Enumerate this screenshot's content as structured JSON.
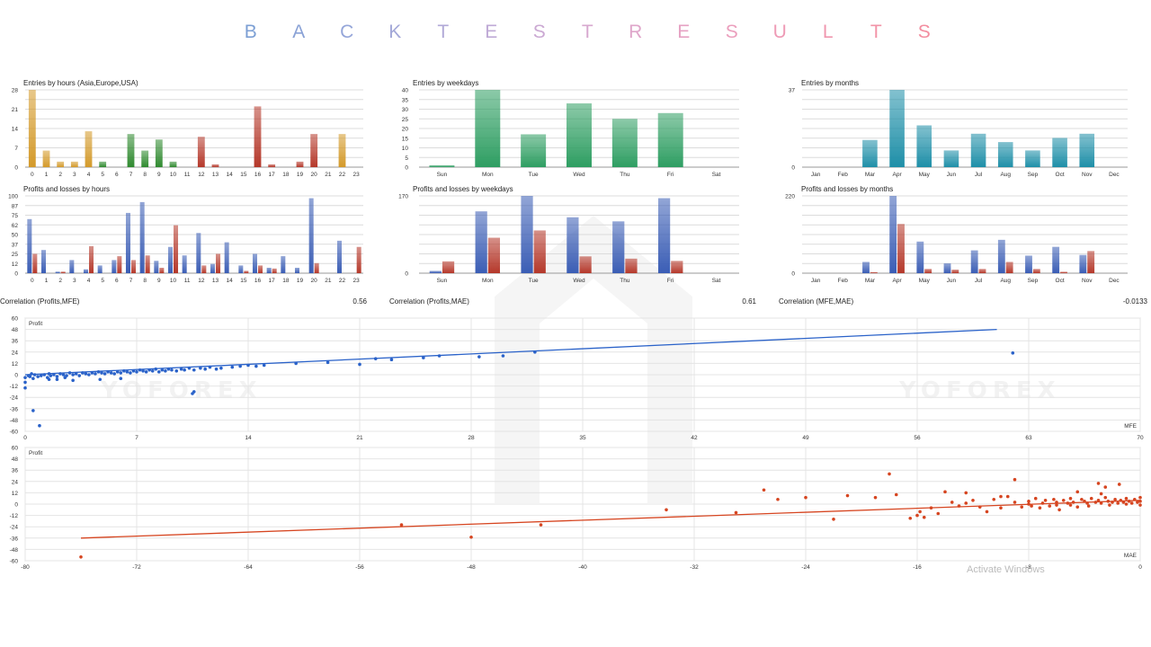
{
  "page_title_letters": [
    "B",
    "A",
    "C",
    "K",
    "T",
    "E",
    "S",
    "T",
    "R",
    "E",
    "S",
    "U",
    "L",
    "T",
    "S"
  ],
  "title_colors": [
    "#7c9fd4",
    "#8aa2d6",
    "#95a6d9",
    "#a3a8d8",
    "#b1a9d7",
    "#bfaad6",
    "#cba9d3",
    "#d7a8cf",
    "#dfa6ca",
    "#e6a2c3",
    "#eb9fbd",
    "#ee9bb6",
    "#f097af",
    "#f293a7",
    "#f38ea0"
  ],
  "watermark": "YOFOREX",
  "activate_text": "Activate Windows",
  "colors": {
    "hours_gold": "#d49a2a",
    "hours_green": "#2f8a2f",
    "hours_red": "#b5382a",
    "weekday_green": "#2e9e62",
    "month_teal": "#1e8fa8",
    "profit_blue": "#3a5db5",
    "loss_red": "#b5382a",
    "mfe_blue": "#2a62c9",
    "mae_red": "#d64520"
  },
  "correlations": [
    {
      "label": "Correlation (Profits,MFE)",
      "value": "0.56"
    },
    {
      "label": "Correlation (Profits,MAE)",
      "value": "0.61"
    },
    {
      "label": "Correlation (MFE,MAE)",
      "value": "-0.0133"
    }
  ],
  "chart_data": [
    {
      "id": "entries-hours",
      "type": "bar",
      "title": "Entries by hours (Asia,Europe,USA)",
      "categories": [
        "0",
        "1",
        "2",
        "3",
        "4",
        "5",
        "6",
        "7",
        "8",
        "9",
        "10",
        "11",
        "12",
        "13",
        "14",
        "15",
        "16",
        "17",
        "18",
        "19",
        "20",
        "21",
        "22",
        "23"
      ],
      "values": [
        28,
        6,
        2,
        2,
        13,
        2,
        0,
        12,
        6,
        10,
        2,
        0,
        11,
        1,
        0,
        0,
        22,
        1,
        0,
        2,
        12,
        0,
        12,
        0
      ],
      "sessions": [
        "asia",
        "asia",
        "asia",
        "asia",
        "asia",
        "europe",
        "europe",
        "europe",
        "europe",
        "europe",
        "europe",
        "usa",
        "usa",
        "usa",
        "usa",
        "usa",
        "usa",
        "usa",
        "usa",
        "usa",
        "usa",
        "asia",
        "asia",
        "asia"
      ],
      "yticks": [
        "0",
        "7",
        "14",
        "21",
        "28"
      ],
      "ylim": [
        0,
        28
      ]
    },
    {
      "id": "entries-weekdays",
      "type": "bar",
      "title": "Entries by weekdays",
      "categories": [
        "Sun",
        "Mon",
        "Tue",
        "Wed",
        "Thu",
        "Fri",
        "Sat"
      ],
      "values": [
        1,
        40,
        17,
        33,
        25,
        28,
        0
      ],
      "yticks": [
        "0",
        "5",
        "10",
        "15",
        "20",
        "25",
        "30",
        "35",
        "40"
      ],
      "ylim": [
        0,
        40
      ]
    },
    {
      "id": "entries-months",
      "type": "bar",
      "title": "Entries by months",
      "categories": [
        "Jan",
        "Feb",
        "Mar",
        "Apr",
        "May",
        "Jun",
        "Jul",
        "Aug",
        "Sep",
        "Oct",
        "Nov",
        "Dec"
      ],
      "values": [
        0,
        0,
        13,
        37,
        20,
        8,
        16,
        12,
        8,
        14,
        16,
        0
      ],
      "yticks": [
        "0",
        "37"
      ],
      "ylim": [
        0,
        37
      ]
    },
    {
      "id": "pl-hours",
      "type": "bar",
      "title": "Profits and losses by hours",
      "categories": [
        "0",
        "1",
        "2",
        "3",
        "4",
        "5",
        "6",
        "7",
        "8",
        "9",
        "10",
        "11",
        "12",
        "13",
        "14",
        "15",
        "16",
        "17",
        "18",
        "19",
        "20",
        "21",
        "22",
        "23"
      ],
      "series": [
        {
          "name": "profits",
          "values": [
            70,
            30,
            2,
            17,
            5,
            10,
            17,
            78,
            92,
            16,
            34,
            23,
            52,
            12,
            40,
            10,
            25,
            7,
            22,
            7,
            97,
            0,
            42,
            0
          ]
        },
        {
          "name": "losses",
          "values": [
            25,
            0,
            2,
            0,
            35,
            0,
            22,
            17,
            23,
            7,
            62,
            0,
            10,
            25,
            0,
            3,
            10,
            6,
            0,
            0,
            13,
            0,
            0,
            34
          ]
        }
      ],
      "yticks": [
        "0",
        "12",
        "25",
        "37",
        "50",
        "62",
        "75",
        "87",
        "100"
      ],
      "ylim": [
        0,
        100
      ]
    },
    {
      "id": "pl-weekdays",
      "type": "bar",
      "title": "Profits and losses by weekdays",
      "categories": [
        "Sun",
        "Mon",
        "Tue",
        "Wed",
        "Thu",
        "Fri",
        "Sat"
      ],
      "series": [
        {
          "name": "profits",
          "values": [
            5,
            136,
            170,
            123,
            114,
            165,
            0
          ]
        },
        {
          "name": "losses",
          "values": [
            26,
            78,
            94,
            37,
            32,
            27,
            0
          ]
        }
      ],
      "yticks": [
        "0",
        "170"
      ],
      "ylim": [
        0,
        170
      ]
    },
    {
      "id": "pl-months",
      "type": "bar",
      "title": "Profits and losses by months",
      "categories": [
        "Jan",
        "Feb",
        "Mar",
        "Apr",
        "May",
        "Jun",
        "Jul",
        "Aug",
        "Sep",
        "Oct",
        "Nov",
        "Dec"
      ],
      "series": [
        {
          "name": "profits",
          "values": [
            0,
            0,
            32,
            220,
            90,
            28,
            65,
            95,
            50,
            75,
            52,
            0
          ]
        },
        {
          "name": "losses",
          "values": [
            0,
            0,
            3,
            140,
            12,
            10,
            12,
            32,
            12,
            4,
            63,
            0
          ]
        }
      ],
      "yticks": [
        "0",
        "220"
      ],
      "ylim": [
        0,
        220
      ]
    },
    {
      "id": "scatter-mfe",
      "type": "scatter",
      "ylabel": "Profit",
      "xlabel": "MFE",
      "xlim": [
        0,
        70
      ],
      "ylim": [
        -60,
        60
      ],
      "xticks": [
        0,
        7,
        14,
        21,
        28,
        35,
        42,
        49,
        56,
        63,
        70
      ],
      "yticks": [
        60,
        48,
        36,
        24,
        12,
        0,
        -12,
        -24,
        -36,
        -48,
        -60
      ],
      "trend": [
        [
          0,
          0
        ],
        [
          61,
          48
        ]
      ],
      "points": [
        [
          0,
          -3
        ],
        [
          0,
          -8
        ],
        [
          0,
          -14
        ],
        [
          0.2,
          -1
        ],
        [
          0.3,
          -2
        ],
        [
          0.4,
          1
        ],
        [
          0.5,
          -4
        ],
        [
          0.6,
          0
        ],
        [
          0.8,
          -2
        ],
        [
          1,
          -1
        ],
        [
          1.2,
          0
        ],
        [
          1.4,
          -3
        ],
        [
          1.5,
          1
        ],
        [
          1.6,
          -1
        ],
        [
          1.8,
          0
        ],
        [
          2,
          -2
        ],
        [
          2.2,
          1
        ],
        [
          2.4,
          0
        ],
        [
          2.6,
          -1
        ],
        [
          2.8,
          2
        ],
        [
          3,
          0
        ],
        [
          3.2,
          1
        ],
        [
          3.4,
          -1
        ],
        [
          3.6,
          2
        ],
        [
          3.8,
          1
        ],
        [
          4,
          0
        ],
        [
          4.2,
          2
        ],
        [
          4.4,
          1
        ],
        [
          4.6,
          3
        ],
        [
          4.8,
          2
        ],
        [
          5,
          1
        ],
        [
          5.2,
          3
        ],
        [
          5.4,
          2
        ],
        [
          5.6,
          1
        ],
        [
          5.8,
          3
        ],
        [
          6,
          2
        ],
        [
          6.2,
          4
        ],
        [
          6.4,
          3
        ],
        [
          6.6,
          2
        ],
        [
          6.8,
          4
        ],
        [
          7,
          3
        ],
        [
          7.2,
          5
        ],
        [
          7.4,
          4
        ],
        [
          7.6,
          3
        ],
        [
          7.8,
          5
        ],
        [
          8,
          4
        ],
        [
          8.2,
          6
        ],
        [
          8.4,
          3
        ],
        [
          8.6,
          5
        ],
        [
          8.8,
          4
        ],
        [
          9,
          6
        ],
        [
          9.2,
          5
        ],
        [
          9.5,
          4
        ],
        [
          9.8,
          6
        ],
        [
          10,
          5
        ],
        [
          10.3,
          7
        ],
        [
          10.6,
          5
        ],
        [
          11,
          7
        ],
        [
          11.3,
          6
        ],
        [
          11.6,
          8
        ],
        [
          12,
          6
        ],
        [
          12.3,
          7
        ],
        [
          13,
          8
        ],
        [
          13.5,
          9
        ],
        [
          14,
          10
        ],
        [
          14.5,
          9
        ],
        [
          15,
          10
        ],
        [
          17,
          12
        ],
        [
          19,
          13
        ],
        [
          21,
          11
        ],
        [
          22,
          17
        ],
        [
          23,
          16
        ],
        [
          25,
          18
        ],
        [
          26,
          20
        ],
        [
          28.5,
          19
        ],
        [
          30,
          20
        ],
        [
          32,
          24
        ],
        [
          10.5,
          -20
        ],
        [
          10.6,
          -18
        ],
        [
          2,
          -5
        ],
        [
          3,
          -6
        ],
        [
          4.7,
          -5
        ],
        [
          6,
          -4
        ],
        [
          0.5,
          -38
        ],
        [
          0.9,
          -54
        ],
        [
          62,
          23
        ],
        [
          1.5,
          -5
        ],
        [
          2.5,
          -3
        ]
      ]
    },
    {
      "id": "scatter-mae",
      "type": "scatter",
      "ylabel": "Profit",
      "xlabel": "MAE",
      "xlim": [
        -80,
        0
      ],
      "ylim": [
        -60,
        60
      ],
      "xticks": [
        -80,
        -72,
        -64,
        -56,
        -48,
        -40,
        -32,
        -24,
        -16,
        -8,
        0
      ],
      "yticks": [
        60,
        48,
        36,
        24,
        12,
        0,
        -12,
        -24,
        -36,
        -48,
        -60
      ],
      "trend": [
        [
          -76,
          -36
        ],
        [
          0,
          4
        ]
      ],
      "points": [
        [
          -76,
          -56
        ],
        [
          -53,
          -22
        ],
        [
          -48,
          -35
        ],
        [
          -43,
          -22
        ],
        [
          -34,
          -6
        ],
        [
          -29,
          -9
        ],
        [
          -27,
          15
        ],
        [
          -26,
          5
        ],
        [
          -24,
          7
        ],
        [
          -22,
          -16
        ],
        [
          -21,
          9
        ],
        [
          -19,
          7
        ],
        [
          -18,
          32
        ],
        [
          -17.5,
          10
        ],
        [
          -16.5,
          -15
        ],
        [
          -16,
          -12
        ],
        [
          -15.8,
          -8
        ],
        [
          -15.5,
          -14
        ],
        [
          -15,
          -4
        ],
        [
          -14.5,
          -10
        ],
        [
          -14,
          13
        ],
        [
          -13.5,
          2
        ],
        [
          -13,
          -2
        ],
        [
          -12.5,
          12
        ],
        [
          -12,
          4
        ],
        [
          -11.5,
          -3
        ],
        [
          -11,
          -8
        ],
        [
          -10.5,
          5
        ],
        [
          -10,
          -4
        ],
        [
          -9.5,
          8
        ],
        [
          -9,
          26
        ],
        [
          -9,
          2
        ],
        [
          -8.5,
          -3
        ],
        [
          -8,
          3
        ],
        [
          -7.5,
          6
        ],
        [
          -7.2,
          -4
        ],
        [
          -7,
          1
        ],
        [
          -6.8,
          4
        ],
        [
          -6.5,
          -2
        ],
        [
          -6.2,
          5
        ],
        [
          -6,
          2
        ],
        [
          -5.8,
          -6
        ],
        [
          -5.5,
          4
        ],
        [
          -5.2,
          1
        ],
        [
          -5,
          6
        ],
        [
          -4.8,
          2
        ],
        [
          -4.5,
          -3
        ],
        [
          -4.2,
          5
        ],
        [
          -4,
          3
        ],
        [
          -3.8,
          1
        ],
        [
          -3.5,
          6
        ],
        [
          -3.2,
          2
        ],
        [
          -3,
          4
        ],
        [
          -2.8,
          1
        ],
        [
          -2.5,
          7
        ],
        [
          -2.3,
          3
        ],
        [
          -2,
          2
        ],
        [
          -1.8,
          5
        ],
        [
          -1.6,
          1
        ],
        [
          -1.4,
          4
        ],
        [
          -1.2,
          2
        ],
        [
          -1,
          6
        ],
        [
          -0.8,
          3
        ],
        [
          -0.6,
          1
        ],
        [
          -0.4,
          5
        ],
        [
          -0.2,
          2
        ],
        [
          0,
          3
        ],
        [
          -3,
          22
        ],
        [
          -2.5,
          18
        ],
        [
          -1.5,
          21
        ],
        [
          -4.5,
          13
        ],
        [
          -6,
          -1
        ],
        [
          -8,
          0
        ],
        [
          -10,
          8
        ],
        [
          -12.5,
          1
        ],
        [
          -5,
          -1
        ],
        [
          -3.7,
          -2
        ],
        [
          -2.2,
          -1
        ],
        [
          -1,
          0
        ],
        [
          0,
          7
        ],
        [
          0,
          -1
        ],
        [
          -2.8,
          11
        ],
        [
          -7.8,
          -2
        ]
      ]
    }
  ]
}
